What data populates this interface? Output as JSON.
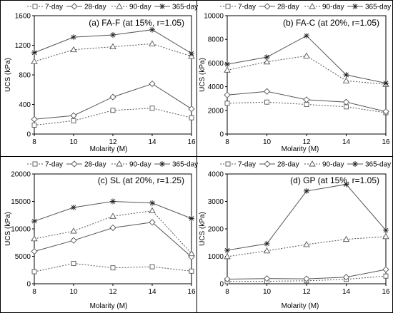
{
  "chart_data": [
    {
      "type": "line",
      "title": "(a) FA-F (at 15%, r=1.05)",
      "xlabel": "Molarity (M)",
      "ylabel": "UCS (kPa)",
      "x": [
        8,
        10,
        12,
        14,
        16
      ],
      "xlim": [
        8,
        16
      ],
      "xticks": [
        "8",
        "10",
        "12",
        "14",
        "16"
      ],
      "ylim": [
        0,
        1600
      ],
      "yticks": [
        "0",
        "400",
        "800",
        "1200",
        "1600"
      ],
      "series": [
        {
          "name": "7-day",
          "values": [
            120,
            180,
            320,
            350,
            220
          ]
        },
        {
          "name": "28-day",
          "values": [
            200,
            250,
            500,
            680,
            340
          ]
        },
        {
          "name": "90-day",
          "values": [
            980,
            1140,
            1180,
            1220,
            1050
          ]
        },
        {
          "name": "365-day",
          "values": [
            1100,
            1310,
            1340,
            1410,
            1090
          ]
        }
      ]
    },
    {
      "type": "line",
      "title": "(b) FA-C (at 20%, r=1.05)",
      "xlabel": "Molarity (M)",
      "ylabel": "UCS (kPa)",
      "x": [
        8,
        10,
        12,
        14,
        16
      ],
      "xlim": [
        8,
        16
      ],
      "xticks": [
        "8",
        "10",
        "12",
        "14",
        "16"
      ],
      "ylim": [
        0,
        10000
      ],
      "yticks": [
        "0",
        "2000",
        "4000",
        "6000",
        "8000",
        "10000"
      ],
      "series": [
        {
          "name": "7-day",
          "values": [
            2600,
            2700,
            2500,
            2300,
            1800
          ]
        },
        {
          "name": "28-day",
          "values": [
            3300,
            3600,
            2900,
            2700,
            1900
          ]
        },
        {
          "name": "90-day",
          "values": [
            5400,
            6100,
            6600,
            4500,
            4200
          ]
        },
        {
          "name": "365-day",
          "values": [
            5900,
            6500,
            8300,
            5000,
            4300
          ]
        }
      ]
    },
    {
      "type": "line",
      "title": "(c) SL (at 20%, r=1.25)",
      "xlabel": "Molarity (M)",
      "ylabel": "UCS (kPa)",
      "x": [
        8,
        10,
        12,
        14,
        16
      ],
      "xlim": [
        8,
        16
      ],
      "xticks": [
        "8",
        "10",
        "12",
        "14",
        "16"
      ],
      "ylim": [
        0,
        20000
      ],
      "yticks": [
        "0",
        "5000",
        "10000",
        "15000",
        "20000"
      ],
      "series": [
        {
          "name": "7-day",
          "values": [
            2200,
            3700,
            2900,
            3100,
            2300
          ]
        },
        {
          "name": "28-day",
          "values": [
            5900,
            7900,
            10200,
            11200,
            4900
          ]
        },
        {
          "name": "90-day",
          "values": [
            8200,
            9600,
            12300,
            13300,
            5500
          ]
        },
        {
          "name": "365-day",
          "values": [
            11400,
            13900,
            15000,
            14700,
            11900
          ]
        }
      ]
    },
    {
      "type": "line",
      "title": "(d) GP (at 15%, r=1.05)",
      "xlabel": "Molarity (M)",
      "ylabel": "UCS (kPa)",
      "x": [
        8,
        10,
        12,
        14,
        16
      ],
      "xlim": [
        8,
        16
      ],
      "xticks": [
        "8",
        "10",
        "12",
        "14",
        "16"
      ],
      "ylim": [
        0,
        4000
      ],
      "yticks": [
        "0",
        "1000",
        "2000",
        "3000",
        "4000"
      ],
      "series": [
        {
          "name": "7-day",
          "values": [
            80,
            90,
            110,
            160,
            280
          ]
        },
        {
          "name": "28-day",
          "values": [
            170,
            190,
            180,
            240,
            520
          ]
        },
        {
          "name": "90-day",
          "values": [
            990,
            1200,
            1430,
            1620,
            1720
          ]
        },
        {
          "name": "365-day",
          "values": [
            1220,
            1460,
            3380,
            3620,
            1950
          ]
        }
      ]
    }
  ]
}
